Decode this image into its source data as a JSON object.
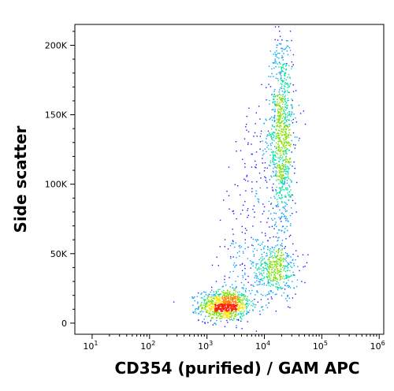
{
  "chart_data": {
    "type": "scatter",
    "subtype": "flow-cytometry density dot plot",
    "xlabel": "CD354 (purified) / GAM APC",
    "ylabel": "Side scatter",
    "x_scale": "log",
    "xlim": [
      5,
      1200000
    ],
    "ylim": [
      -8000,
      215000
    ],
    "x_ticks": [
      {
        "value": 10,
        "base": "10",
        "exp": "1"
      },
      {
        "value": 100,
        "base": "10",
        "exp": "2"
      },
      {
        "value": 1000,
        "base": "10",
        "exp": "3"
      },
      {
        "value": 10000,
        "base": "10",
        "exp": "4"
      },
      {
        "value": 100000,
        "base": "10",
        "exp": "5"
      },
      {
        "value": 1000000,
        "base": "10",
        "exp": "6"
      }
    ],
    "y_ticks": [
      {
        "value": 0,
        "label": "0"
      },
      {
        "value": 50000,
        "label": "50K"
      },
      {
        "value": 100000,
        "label": "100K"
      },
      {
        "value": 150000,
        "label": "150K"
      },
      {
        "value": 200000,
        "label": "200K"
      }
    ],
    "populations": [
      {
        "center_x": 2000,
        "center_y": 13000,
        "share": 0.35
      },
      {
        "center_x": 20000,
        "center_y": 135000,
        "share": 0.35
      },
      {
        "center_x": 15000,
        "center_y": 38000,
        "share": 0.17
      }
    ],
    "density_colors": [
      "#1a1aff",
      "#00a0ff",
      "#00e0a0",
      "#7ee000",
      "#ffe000",
      "#ff8000",
      "#ff1a00"
    ],
    "grid": false,
    "legend": "none"
  }
}
